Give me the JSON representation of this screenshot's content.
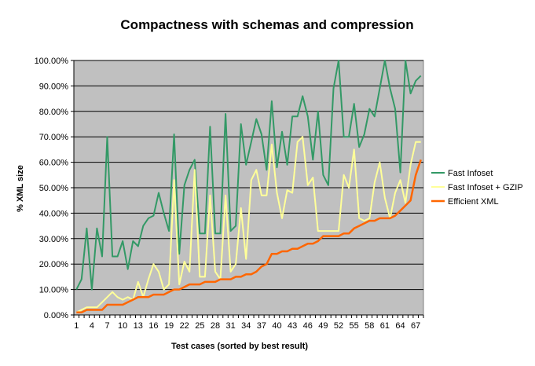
{
  "chart_data": {
    "type": "line",
    "title": "Compactness with schemas and compression",
    "xlabel": "Test cases (sorted by best result)",
    "ylabel": "% XML size",
    "x": [
      1,
      2,
      3,
      4,
      5,
      6,
      7,
      8,
      9,
      10,
      11,
      12,
      13,
      14,
      15,
      16,
      17,
      18,
      19,
      20,
      21,
      22,
      23,
      24,
      25,
      26,
      27,
      28,
      29,
      30,
      31,
      32,
      33,
      34,
      35,
      36,
      37,
      38,
      39,
      40,
      41,
      42,
      43,
      44,
      45,
      46,
      47,
      48,
      49,
      50,
      51,
      52,
      53,
      54,
      55,
      56,
      57,
      58,
      59,
      60,
      61,
      62,
      63,
      64,
      65,
      66,
      67,
      68
    ],
    "x_tick_labels": [
      "1",
      "4",
      "7",
      "10",
      "13",
      "16",
      "19",
      "22",
      "25",
      "28",
      "31",
      "34",
      "37",
      "40",
      "43",
      "46",
      "49",
      "52",
      "55",
      "58",
      "61",
      "64",
      "67"
    ],
    "y_tick_labels": [
      "0.00%",
      "10.00%",
      "20.00%",
      "30.00%",
      "40.00%",
      "50.00%",
      "60.00%",
      "70.00%",
      "80.00%",
      "90.00%",
      "100.00%"
    ],
    "ylim": [
      0,
      100
    ],
    "grid": true,
    "legend_position": "right",
    "plot_background": "#c0c0c0",
    "series": [
      {
        "name": "Fast Infoset",
        "color": "#339966",
        "values": [
          10,
          14,
          34,
          10,
          34,
          23,
          70,
          23,
          23,
          29,
          18,
          29,
          27,
          35,
          38,
          39,
          48,
          40,
          33,
          71,
          24,
          51,
          57,
          61,
          32,
          32,
          74,
          32,
          32,
          79,
          33,
          35,
          75,
          59,
          68,
          77,
          71,
          57,
          84,
          58,
          72,
          59,
          78,
          78,
          86,
          78,
          61,
          80,
          55,
          51,
          89,
          100,
          70,
          70,
          83,
          66,
          71,
          81,
          78,
          89,
          100,
          89,
          81,
          56,
          100,
          87,
          92,
          94
        ]
      },
      {
        "name": "Fast Infoset + GZIP",
        "color": "#ffff99",
        "values": [
          1,
          2,
          3,
          3,
          3,
          5,
          7,
          9,
          7,
          6,
          7,
          6,
          13,
          7,
          14,
          20,
          17,
          10,
          12,
          53,
          12,
          21,
          17,
          57,
          15,
          15,
          47,
          17,
          14,
          47,
          17,
          20,
          42,
          22,
          53,
          57,
          47,
          47,
          67,
          48,
          38,
          49,
          48,
          68,
          70,
          51,
          54,
          33,
          33,
          33,
          33,
          33,
          55,
          50,
          65,
          38,
          37,
          38,
          52,
          60,
          46,
          38,
          48,
          53,
          44,
          59,
          68,
          68
        ]
      },
      {
        "name": "Efficient XML",
        "color": "#ff6600",
        "values": [
          1,
          1,
          2,
          2,
          2,
          2,
          4,
          4,
          4,
          4,
          5,
          6,
          7,
          7,
          7,
          8,
          8,
          8,
          9,
          10,
          10,
          11,
          12,
          12,
          12,
          13,
          13,
          13,
          14,
          14,
          14,
          15,
          15,
          16,
          16,
          17,
          19,
          20,
          24,
          24,
          25,
          25,
          26,
          26,
          27,
          28,
          28,
          29,
          31,
          31,
          31,
          31,
          32,
          32,
          34,
          35,
          36,
          37,
          37,
          38,
          38,
          38,
          39,
          41,
          43,
          45,
          55,
          61
        ]
      }
    ]
  }
}
